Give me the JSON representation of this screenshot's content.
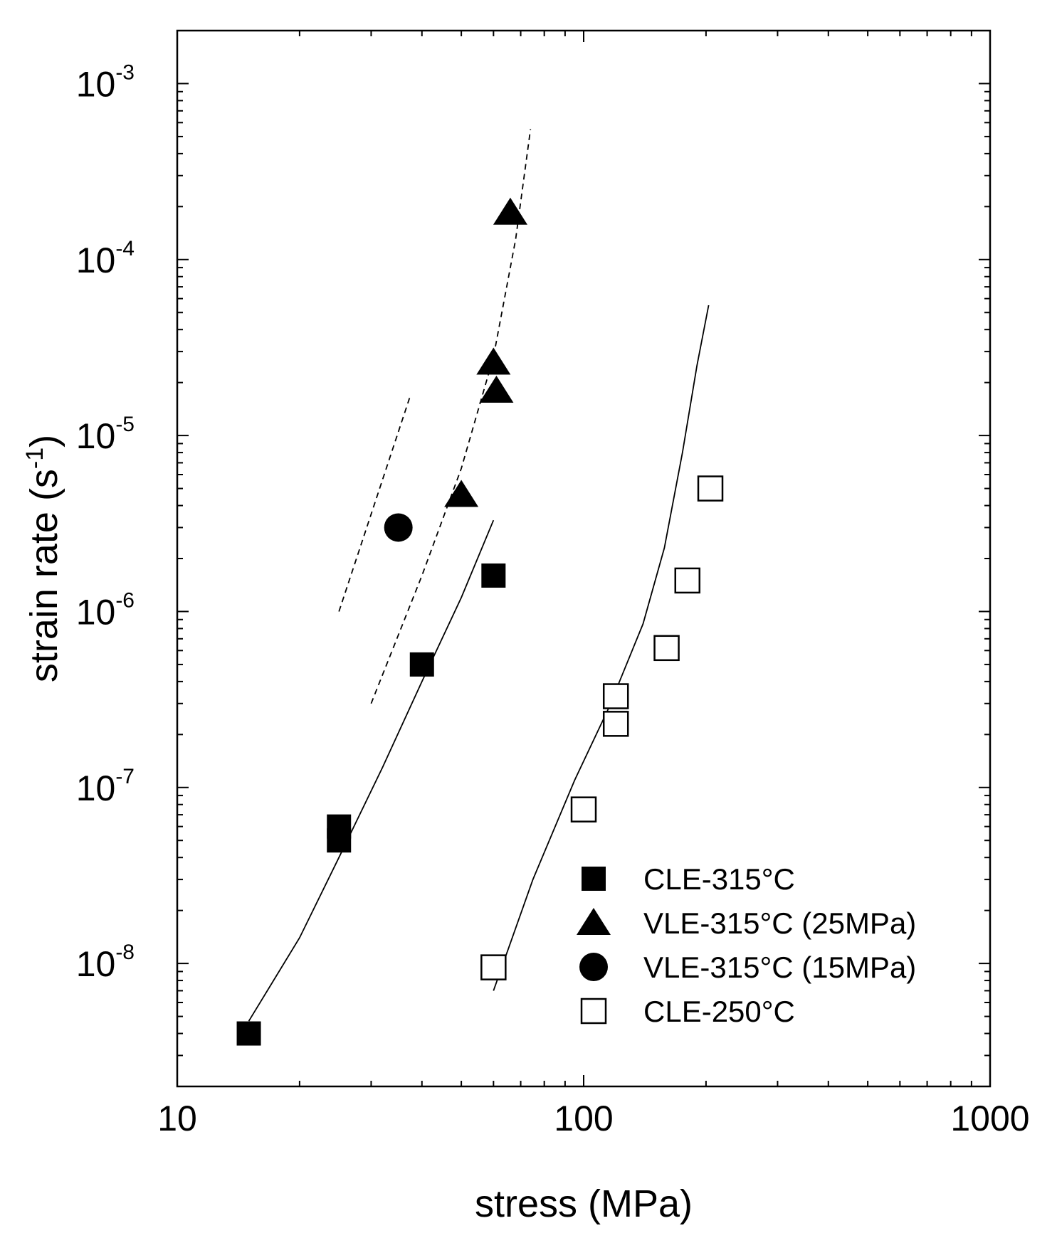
{
  "chart_data": {
    "type": "scatter",
    "title": "",
    "xlabel": "stress (MPa)",
    "ylabel": "strain rate (s-1)",
    "ylabel_parts": {
      "prefix": "strain rate (s",
      "sup": "-1",
      "suffix": ")"
    },
    "xscale": "log",
    "yscale": "log",
    "xlim": [
      10,
      1000
    ],
    "ylim": [
      2e-09,
      0.002
    ],
    "x_ticks": [
      {
        "value": 10,
        "label": "10"
      },
      {
        "value": 100,
        "label": "100"
      },
      {
        "value": 1000,
        "label": "1000"
      }
    ],
    "y_ticks": [
      {
        "value": 1e-08,
        "base": "10",
        "exp": "-8"
      },
      {
        "value": 1e-07,
        "base": "10",
        "exp": "-7"
      },
      {
        "value": 1e-06,
        "base": "10",
        "exp": "-6"
      },
      {
        "value": 1e-05,
        "base": "10",
        "exp": "-5"
      },
      {
        "value": 0.0001,
        "base": "10",
        "exp": "-4"
      },
      {
        "value": 0.001,
        "base": "10",
        "exp": "-3"
      }
    ],
    "grid": false,
    "legend_position": "bottom-right",
    "series": [
      {
        "name": "CLE-315°C",
        "marker": "square-filled",
        "points": [
          {
            "x": 15,
            "y": 4e-09
          },
          {
            "x": 25,
            "y": 5e-08
          },
          {
            "x": 25,
            "y": 6e-08
          },
          {
            "x": 40,
            "y": 5e-07
          },
          {
            "x": 60,
            "y": 1.6e-06
          }
        ]
      },
      {
        "name": "VLE-315°C (25MPa)",
        "marker": "triangle-filled",
        "points": [
          {
            "x": 50,
            "y": 4.6e-06
          },
          {
            "x": 61,
            "y": 1.8e-05
          },
          {
            "x": 60,
            "y": 2.6e-05
          },
          {
            "x": 66,
            "y": 0.000185
          }
        ]
      },
      {
        "name": "VLE-315°C (15MPa)",
        "marker": "circle-filled",
        "points": [
          {
            "x": 35,
            "y": 3e-06
          }
        ]
      },
      {
        "name": "CLE-250°C",
        "marker": "square-open",
        "points": [
          {
            "x": 60,
            "y": 9.5e-09
          },
          {
            "x": 100,
            "y": 7.5e-08
          },
          {
            "x": 120,
            "y": 2.3e-07
          },
          {
            "x": 120,
            "y": 3.3e-07
          },
          {
            "x": 160,
            "y": 6.2e-07
          },
          {
            "x": 180,
            "y": 1.5e-06
          },
          {
            "x": 205,
            "y": 5e-06
          }
        ]
      }
    ],
    "curves": [
      {
        "name": "fit-CLE-315",
        "style": "solid",
        "points": [
          {
            "x": 15,
            "y": 4.7e-09
          },
          {
            "x": 20,
            "y": 1.4e-08
          },
          {
            "x": 25,
            "y": 4e-08
          },
          {
            "x": 32,
            "y": 1.3e-07
          },
          {
            "x": 40,
            "y": 4e-07
          },
          {
            "x": 50,
            "y": 1.2e-06
          },
          {
            "x": 60,
            "y": 3.3e-06
          }
        ]
      },
      {
        "name": "fit-CLE-250",
        "style": "solid",
        "points": [
          {
            "x": 60,
            "y": 7e-09
          },
          {
            "x": 75,
            "y": 3e-08
          },
          {
            "x": 95,
            "y": 1.1e-07
          },
          {
            "x": 115,
            "y": 2.8e-07
          },
          {
            "x": 140,
            "y": 8.5e-07
          },
          {
            "x": 158,
            "y": 2.3e-06
          },
          {
            "x": 175,
            "y": 8e-06
          },
          {
            "x": 190,
            "y": 2.5e-05
          },
          {
            "x": 203,
            "y": 5.5e-05
          }
        ]
      },
      {
        "name": "fit-VLE-25MPa",
        "style": "dashed",
        "points": [
          {
            "x": 30,
            "y": 3e-07
          },
          {
            "x": 40,
            "y": 1.6e-06
          },
          {
            "x": 50,
            "y": 6.5e-06
          },
          {
            "x": 60,
            "y": 2.8e-05
          },
          {
            "x": 68,
            "y": 0.00013
          },
          {
            "x": 74,
            "y": 0.00055
          }
        ]
      },
      {
        "name": "fit-VLE-15MPa",
        "style": "dashed",
        "points": [
          {
            "x": 25,
            "y": 1e-06
          },
          {
            "x": 37.5,
            "y": 1.7e-05
          }
        ]
      }
    ]
  }
}
